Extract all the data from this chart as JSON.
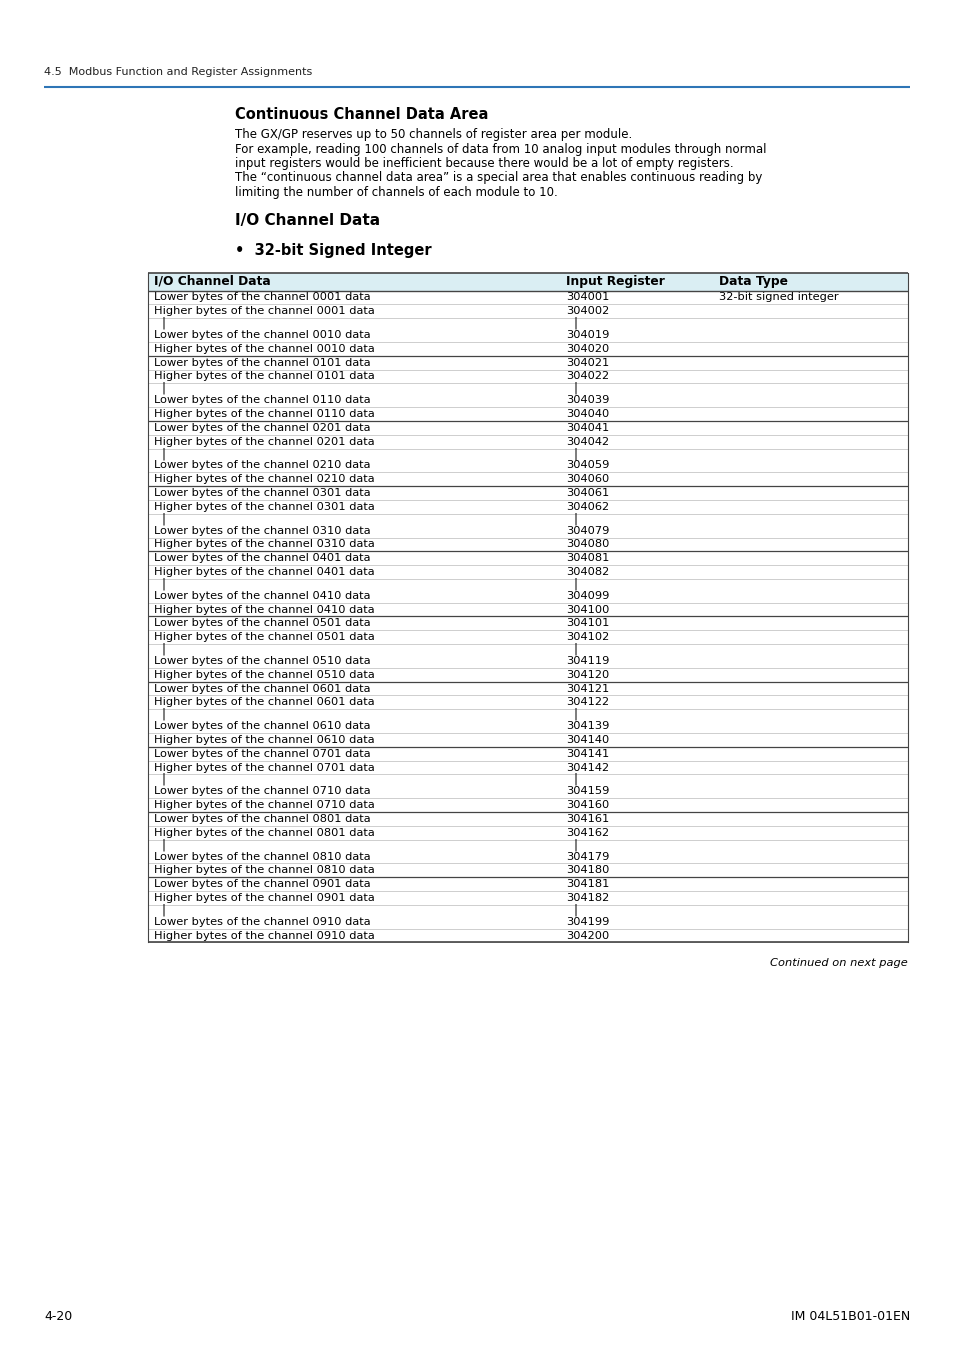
{
  "page_header": "4.5  Modbus Function and Register Assignments",
  "section_title": "Continuous Channel Data Area",
  "section_body": [
    "The GX/GP reserves up to 50 channels of register area per module.",
    "For example, reading 100 channels of data from 10 analog input modules through normal",
    "input registers would be inefficient because there would be a lot of empty registers.",
    "The “continuous channel data area” is a special area that enables continuous reading by",
    "limiting the number of channels of each module to 10."
  ],
  "subsection_title": "I/O Channel Data",
  "bullet_title": "32-bit Signed Integer",
  "table_header": [
    "I/O Channel Data",
    "Input Register",
    "Data Type"
  ],
  "table_rows": [
    [
      "Lower bytes of the channel 0001 data",
      "304001",
      "32-bit signed integer"
    ],
    [
      "Higher bytes of the channel 0001 data",
      "304002",
      ""
    ],
    [
      "|",
      "|",
      ""
    ],
    [
      "Lower bytes of the channel 0010 data",
      "304019",
      ""
    ],
    [
      "Higher bytes of the channel 0010 data",
      "304020",
      ""
    ],
    [
      "Lower bytes of the channel 0101 data",
      "304021",
      ""
    ],
    [
      "Higher bytes of the channel 0101 data",
      "304022",
      ""
    ],
    [
      "|",
      "|",
      ""
    ],
    [
      "Lower bytes of the channel 0110 data",
      "304039",
      ""
    ],
    [
      "Higher bytes of the channel 0110 data",
      "304040",
      ""
    ],
    [
      "Lower bytes of the channel 0201 data",
      "304041",
      ""
    ],
    [
      "Higher bytes of the channel 0201 data",
      "304042",
      ""
    ],
    [
      "|",
      "|",
      ""
    ],
    [
      "Lower bytes of the channel 0210 data",
      "304059",
      ""
    ],
    [
      "Higher bytes of the channel 0210 data",
      "304060",
      ""
    ],
    [
      "Lower bytes of the channel 0301 data",
      "304061",
      ""
    ],
    [
      "Higher bytes of the channel 0301 data",
      "304062",
      ""
    ],
    [
      "|",
      "|",
      ""
    ],
    [
      "Lower bytes of the channel 0310 data",
      "304079",
      ""
    ],
    [
      "Higher bytes of the channel 0310 data",
      "304080",
      ""
    ],
    [
      "Lower bytes of the channel 0401 data",
      "304081",
      ""
    ],
    [
      "Higher bytes of the channel 0401 data",
      "304082",
      ""
    ],
    [
      "|",
      "|",
      ""
    ],
    [
      "Lower bytes of the channel 0410 data",
      "304099",
      ""
    ],
    [
      "Higher bytes of the channel 0410 data",
      "304100",
      ""
    ],
    [
      "Lower bytes of the channel 0501 data",
      "304101",
      ""
    ],
    [
      "Higher bytes of the channel 0501 data",
      "304102",
      ""
    ],
    [
      "|",
      "|",
      ""
    ],
    [
      "Lower bytes of the channel 0510 data",
      "304119",
      ""
    ],
    [
      "Higher bytes of the channel 0510 data",
      "304120",
      ""
    ],
    [
      "Lower bytes of the channel 0601 data",
      "304121",
      ""
    ],
    [
      "Higher bytes of the channel 0601 data",
      "304122",
      ""
    ],
    [
      "|",
      "|",
      ""
    ],
    [
      "Lower bytes of the channel 0610 data",
      "304139",
      ""
    ],
    [
      "Higher bytes of the channel 0610 data",
      "304140",
      ""
    ],
    [
      "Lower bytes of the channel 0701 data",
      "304141",
      ""
    ],
    [
      "Higher bytes of the channel 0701 data",
      "304142",
      ""
    ],
    [
      "|",
      "|",
      ""
    ],
    [
      "Lower bytes of the channel 0710 data",
      "304159",
      ""
    ],
    [
      "Higher bytes of the channel 0710 data",
      "304160",
      ""
    ],
    [
      "Lower bytes of the channel 0801 data",
      "304161",
      ""
    ],
    [
      "Higher bytes of the channel 0801 data",
      "304162",
      ""
    ],
    [
      "|",
      "|",
      ""
    ],
    [
      "Lower bytes of the channel 0810 data",
      "304179",
      ""
    ],
    [
      "Higher bytes of the channel 0810 data",
      "304180",
      ""
    ],
    [
      "Lower bytes of the channel 0901 data",
      "304181",
      ""
    ],
    [
      "Higher bytes of the channel 0901 data",
      "304182",
      ""
    ],
    [
      "|",
      "|",
      ""
    ],
    [
      "Lower bytes of the channel 0910 data",
      "304199",
      ""
    ],
    [
      "Higher bytes of the channel 0910 data",
      "304200",
      ""
    ]
  ],
  "footer_left": "4-20",
  "footer_right": "IM 04L51B01-01EN",
  "continued_text": "Continued on next page",
  "header_bg_color": "#daeef3",
  "header_line_color": "#2e75b6",
  "bg_color": "#ffffff",
  "text_color": "#000000",
  "thick_line_after_indices": [
    4,
    9,
    14,
    19,
    24,
    29,
    34,
    39,
    44
  ]
}
